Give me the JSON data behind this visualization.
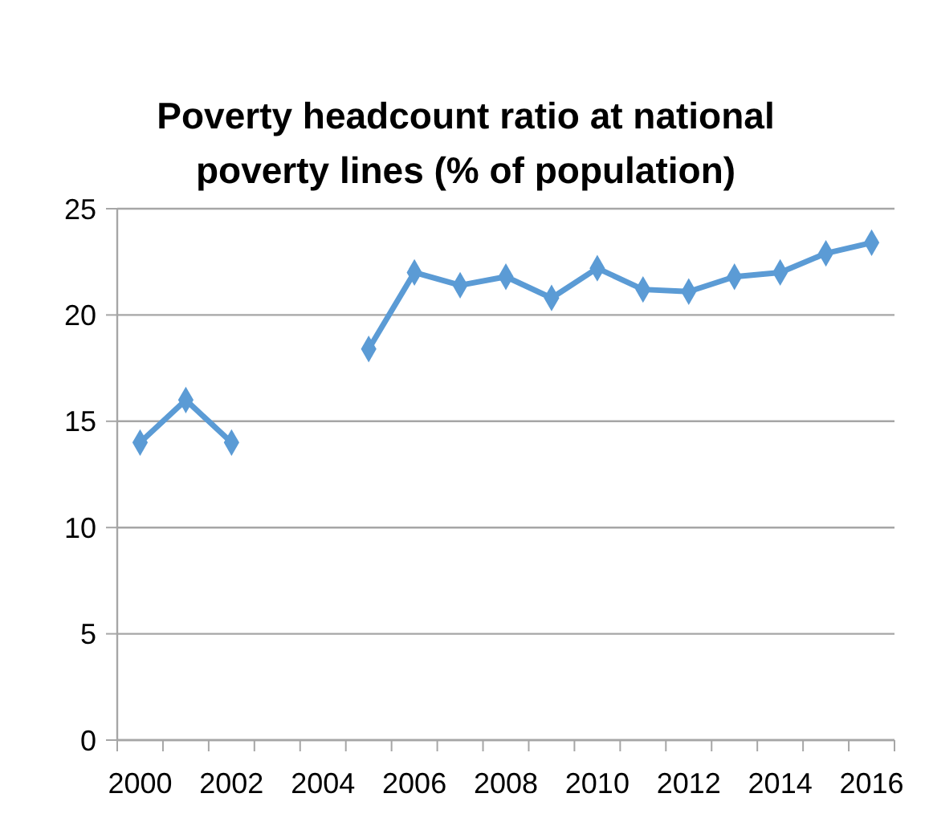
{
  "chart_data": {
    "type": "line",
    "title": "Poverty headcount ratio at national poverty lines (% of population)",
    "categories": [
      "2000",
      null,
      "2002",
      null,
      "2004",
      null,
      "2006",
      null,
      "2008",
      null,
      "2010",
      null,
      "2012",
      null,
      "2014",
      null,
      "2016"
    ],
    "series": [
      {
        "color": "#5b9bd5",
        "values": [
          14,
          16,
          14,
          null,
          null,
          18.4,
          22,
          21.4,
          21.8,
          20.8,
          22.2,
          21.2,
          21.1,
          21.8,
          22,
          22.9,
          23.4
        ]
      }
    ],
    "ylim": [
      0,
      25
    ],
    "yticks": [
      0,
      5,
      10,
      15,
      20,
      25
    ],
    "grid": "y",
    "marker": "diamond",
    "line_style": "solid"
  }
}
